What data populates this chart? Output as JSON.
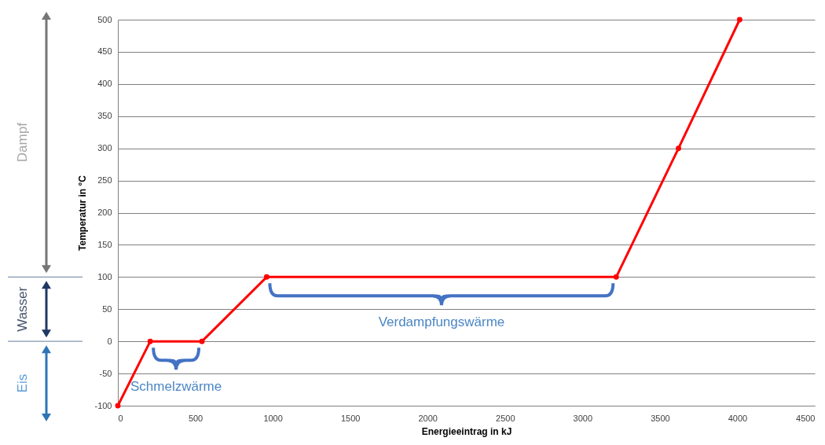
{
  "chart_data": {
    "type": "line",
    "xlabel": "Energieeintrag in kJ",
    "ylabel": "Temperatur in °C",
    "x": [
      0,
      209,
      543,
      961,
      3218,
      3620,
      4015
    ],
    "series": [
      {
        "color": "#ff0000",
        "values": [
          -100,
          0,
          0,
          100,
          100,
          300,
          500
        ]
      }
    ],
    "xlim": [
      0,
      4500
    ],
    "xticks": [
      0,
      500,
      1000,
      1500,
      2000,
      2500,
      3000,
      3500,
      4000,
      4500
    ],
    "ylim": [
      -100,
      500
    ],
    "yticks": [
      -100,
      -50,
      0,
      50,
      100,
      150,
      200,
      250,
      300,
      350,
      400,
      450,
      500
    ],
    "grid": "y",
    "marker": "circle",
    "line_style": "solid",
    "annotations": [
      {
        "text": "Schmelzwärme",
        "x": 376,
        "y": 0
      },
      {
        "text": "Verdampfungswärme",
        "x": 2090,
        "y": 100
      },
      "Dampf",
      "Wasser",
      "Eis"
    ]
  }
}
